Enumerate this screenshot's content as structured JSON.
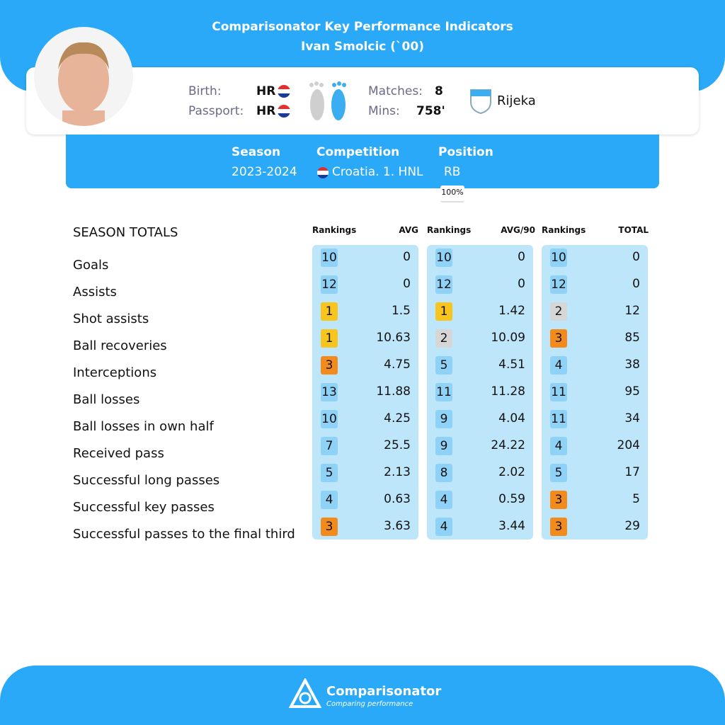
{
  "header": {
    "title": "Comparisonator Key Performance Indicators",
    "subtitle": "Ivan Smolcic (`00)"
  },
  "profile": {
    "birth_label": "Birth:",
    "birth": "HR",
    "passport_label": "Passport:",
    "passport": "HR",
    "matches_label": "Matches:",
    "matches": "8",
    "mins_label": "Mins:",
    "mins": "758'",
    "club": "Rijeka"
  },
  "season": {
    "season_label": "Season",
    "season": "2023-2024",
    "competition_label": "Competition",
    "competition": "Croatia. 1. HNL",
    "position_label": "Position",
    "position": "RB",
    "position_share": "100%"
  },
  "table": {
    "title": "SEASON TOTALS",
    "headers": [
      "Rankings",
      "AVG",
      "Rankings",
      "AVG/90",
      "Rankings",
      "TOTAL"
    ],
    "rows": [
      [
        "Goals",
        10,
        0,
        10,
        0,
        10,
        0
      ],
      [
        "Assists",
        12,
        0,
        12,
        0,
        12,
        0
      ],
      [
        "Shot assists",
        1,
        1.5,
        1,
        1.42,
        2,
        12
      ],
      [
        "Ball recoveries",
        1,
        10.63,
        2,
        10.09,
        3,
        85
      ],
      [
        "Interceptions",
        3,
        4.75,
        5,
        4.51,
        4,
        38
      ],
      [
        "Ball losses",
        13,
        11.88,
        11,
        11.28,
        11,
        95
      ],
      [
        "Ball losses in own half",
        10,
        4.25,
        9,
        4.04,
        11,
        34
      ],
      [
        "Received pass",
        7,
        25.5,
        9,
        24.22,
        4,
        204
      ],
      [
        "Successful long passes",
        5,
        2.13,
        8,
        2.02,
        5,
        17
      ],
      [
        "Successful key passes",
        4,
        0.63,
        4,
        0.59,
        3,
        5
      ],
      [
        "Successful passes to the final third",
        3,
        3.63,
        4,
        3.44,
        3,
        29
      ]
    ]
  },
  "footer": {
    "brand": "Comparisonator",
    "tagline": "Comparing performance"
  }
}
